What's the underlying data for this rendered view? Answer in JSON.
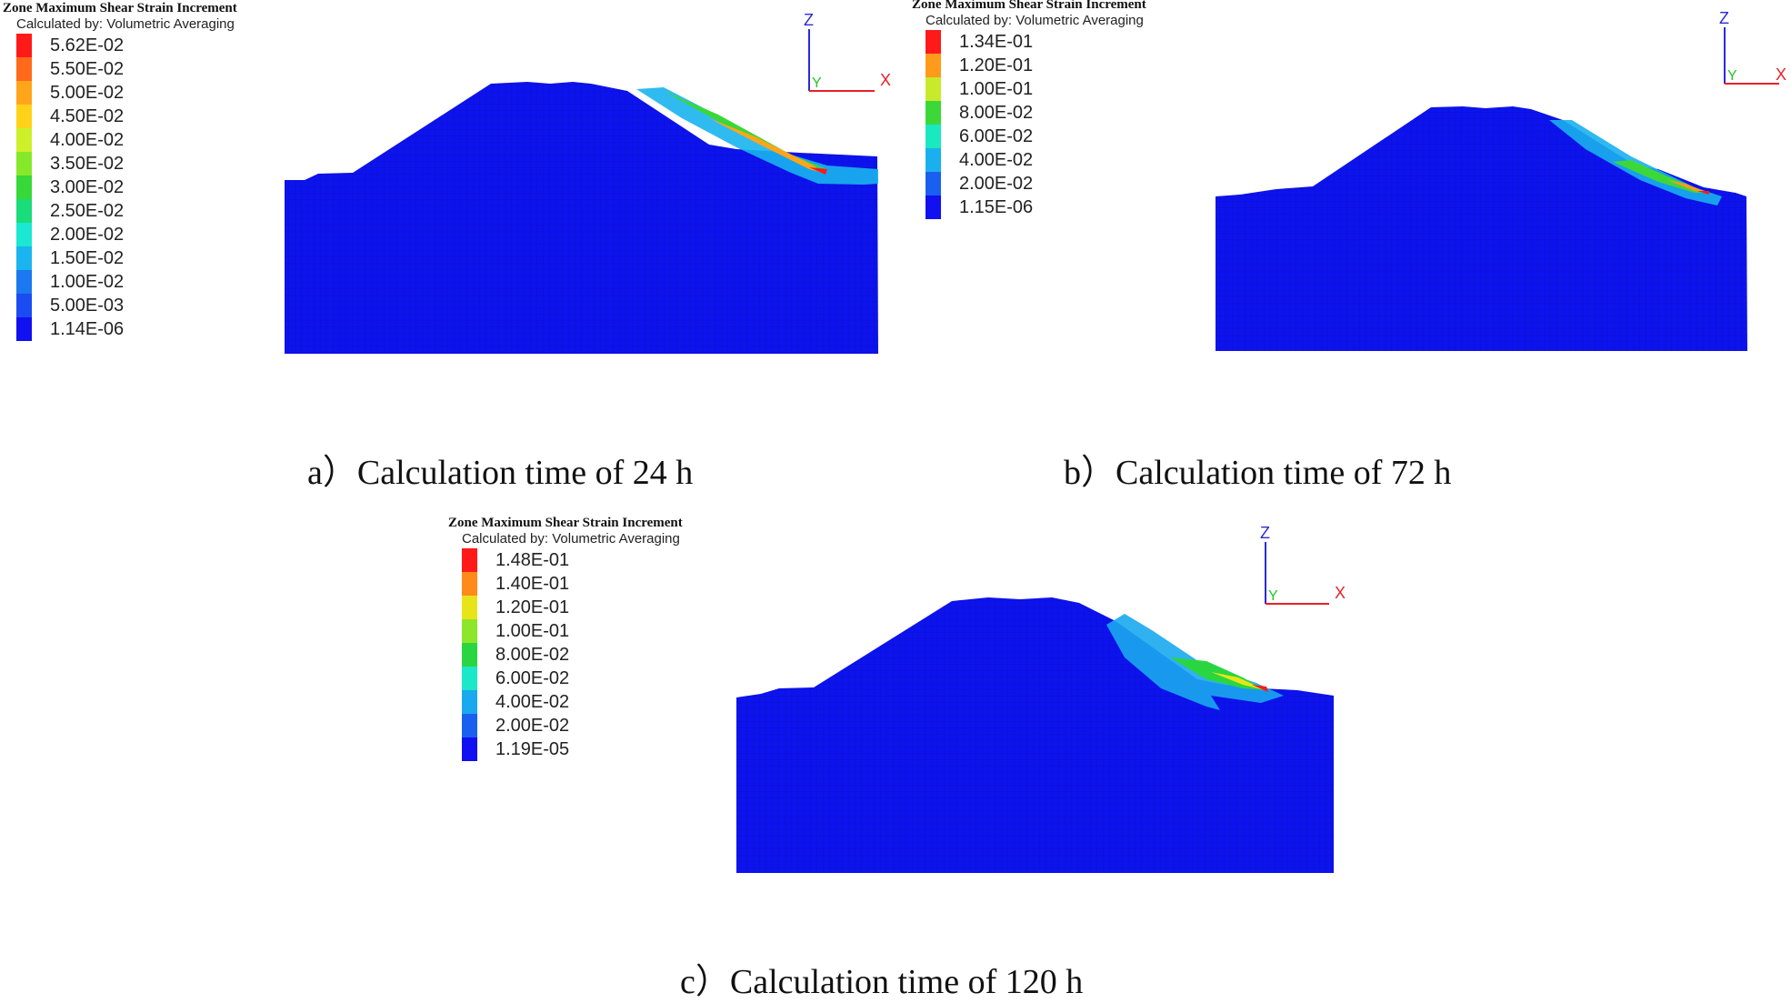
{
  "panels": [
    {
      "id": "a",
      "legend": {
        "title": "Zone Maximum Shear Strain Increment",
        "subtitle": "Calculated by: Volumetric Averaging",
        "entries": [
          {
            "label": "5.62E-02",
            "color": "#ff1a1a"
          },
          {
            "label": "5.50E-02",
            "color": "#ff6a1a"
          },
          {
            "label": "5.00E-02",
            "color": "#ffa51a"
          },
          {
            "label": "4.50E-02",
            "color": "#ffd21a"
          },
          {
            "label": "4.00E-02",
            "color": "#cdf02a"
          },
          {
            "label": "3.50E-02",
            "color": "#86e82a"
          },
          {
            "label": "3.00E-02",
            "color": "#38d838"
          },
          {
            "label": "2.50E-02",
            "color": "#1adc7a"
          },
          {
            "label": "2.00E-02",
            "color": "#1ae8d2"
          },
          {
            "label": "1.50E-02",
            "color": "#1ab4ee"
          },
          {
            "label": "1.00E-02",
            "color": "#1a78f0"
          },
          {
            "label": "5.00E-03",
            "color": "#1a4cf2"
          },
          {
            "label": "1.14E-06",
            "color": "#1010f0"
          }
        ]
      },
      "axes": {
        "z": "Z",
        "y": "Y",
        "x": "X"
      },
      "caption": "a）Calculation time of 24 h"
    },
    {
      "id": "b",
      "legend": {
        "title": "Zone Maximum Shear Strain Increment",
        "subtitle": "Calculated by: Volumetric Averaging",
        "entries": [
          {
            "label": "1.34E-01",
            "color": "#ff1a1a"
          },
          {
            "label": "1.20E-01",
            "color": "#ff9a1a"
          },
          {
            "label": "1.00E-01",
            "color": "#c8ea2a"
          },
          {
            "label": "8.00E-02",
            "color": "#3cd83a"
          },
          {
            "label": "6.00E-02",
            "color": "#1ae8c0"
          },
          {
            "label": "4.00E-02",
            "color": "#1ab0ee"
          },
          {
            "label": "2.00E-02",
            "color": "#1a60f0"
          },
          {
            "label": "1.15E-06",
            "color": "#1010f0"
          }
        ]
      },
      "axes": {
        "z": "Z",
        "y": "Y",
        "x": "X"
      },
      "caption": "b）Calculation time of 72 h"
    },
    {
      "id": "c",
      "legend": {
        "title": "Zone Maximum Shear Strain Increment",
        "subtitle": "Calculated by: Volumetric Averaging",
        "entries": [
          {
            "label": "1.48E-01",
            "color": "#ff1a1a"
          },
          {
            "label": "1.40E-01",
            "color": "#ff8a1a"
          },
          {
            "label": "1.20E-01",
            "color": "#e8e41a"
          },
          {
            "label": "1.00E-01",
            "color": "#8ee62a"
          },
          {
            "label": "8.00E-02",
            "color": "#2ad640"
          },
          {
            "label": "6.00E-02",
            "color": "#1ae8c8"
          },
          {
            "label": "4.00E-02",
            "color": "#1aa8ee"
          },
          {
            "label": "2.00E-02",
            "color": "#1a60f0"
          },
          {
            "label": "1.19E-05",
            "color": "#1010f0"
          }
        ]
      },
      "axes": {
        "z": "Z",
        "y": "Y",
        "x": "X"
      },
      "caption": "c）Calculation time of 120 h"
    }
  ],
  "colors": {
    "model_blue": "#0d13ee",
    "mesh_line": "#0a0c9a",
    "axis_x": "#e8202a",
    "axis_y": "#22c822",
    "axis_z": "#2a2ad8"
  }
}
